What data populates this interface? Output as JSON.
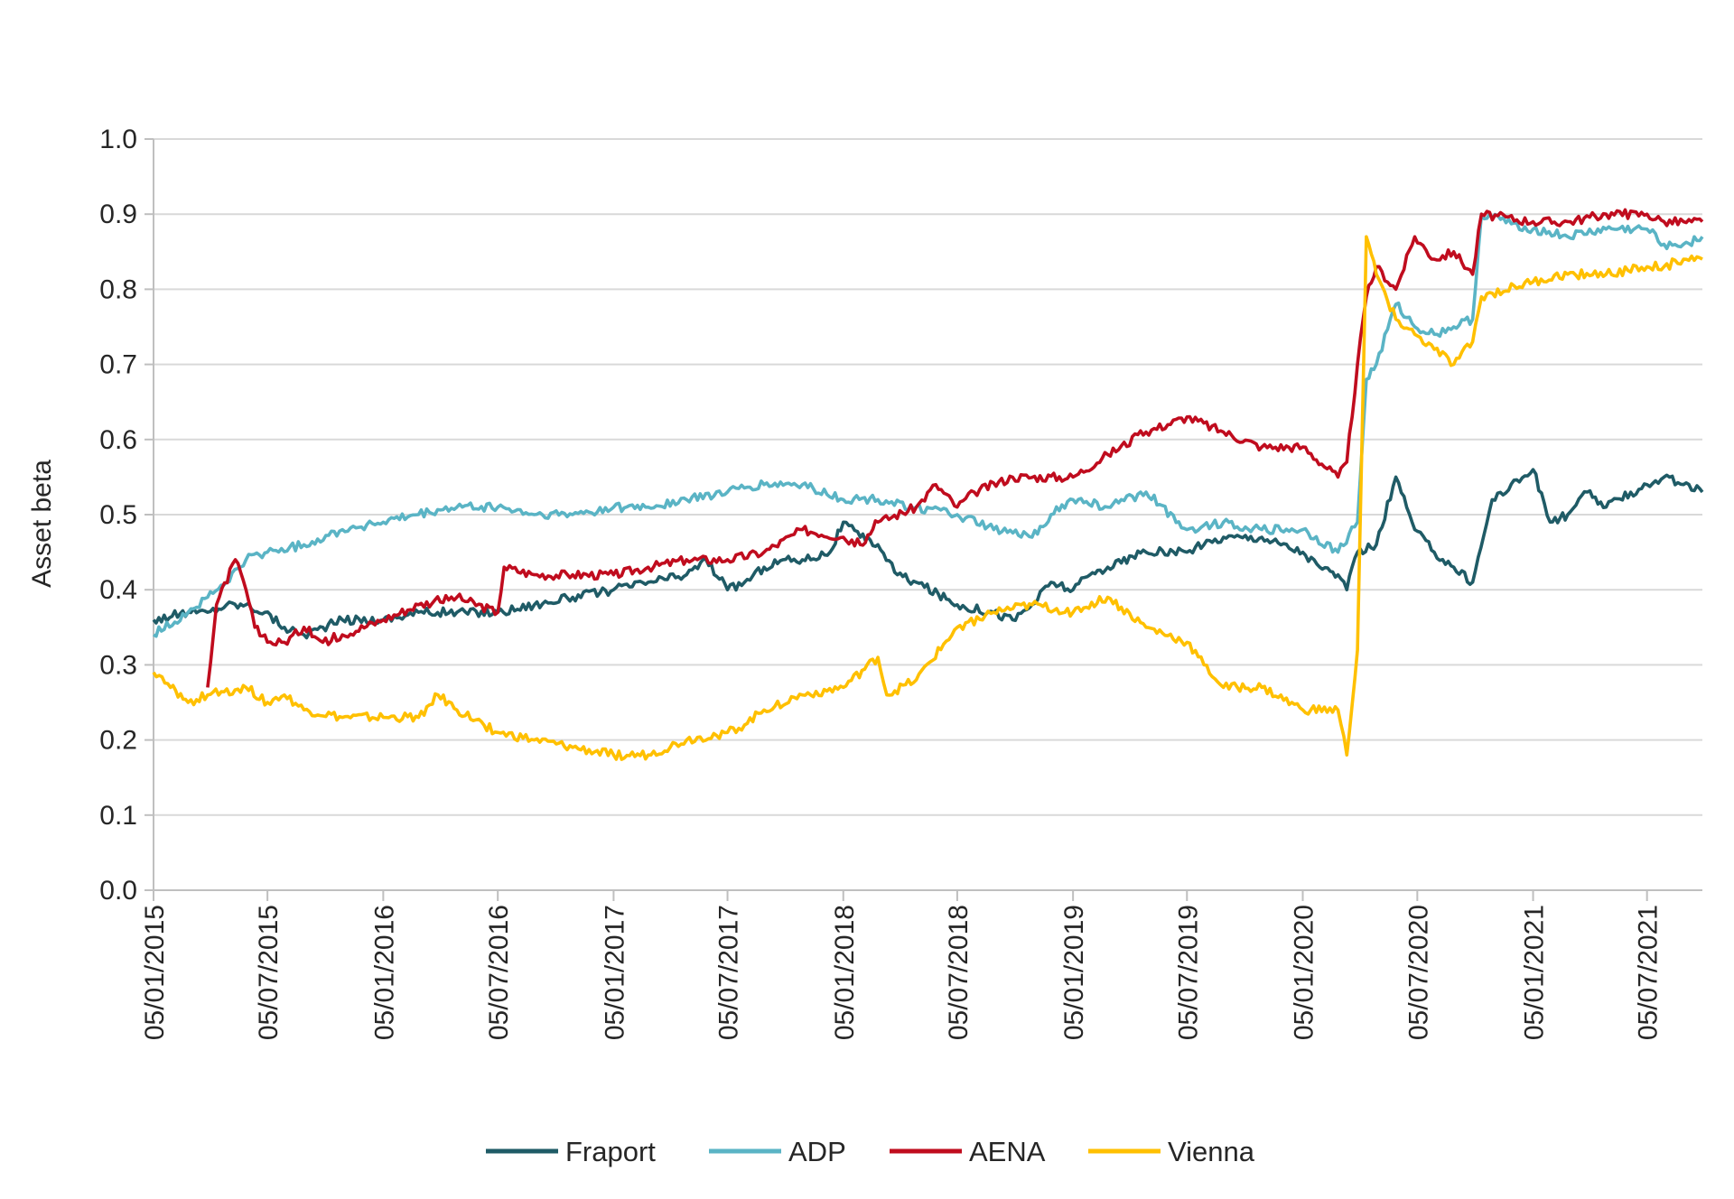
{
  "chart_data": {
    "type": "line",
    "title": "",
    "xlabel": "",
    "ylabel": "Asset beta",
    "ylim": [
      0.0,
      1.0
    ],
    "y_ticks": [
      "0.0",
      "0.1",
      "0.2",
      "0.3",
      "0.4",
      "0.5",
      "0.6",
      "0.7",
      "0.8",
      "0.9",
      "1.0"
    ],
    "x_ticks": [
      "05/01/2015",
      "05/07/2015",
      "05/01/2016",
      "05/07/2016",
      "05/01/2017",
      "05/07/2017",
      "05/01/2018",
      "05/07/2018",
      "05/01/2019",
      "05/07/2019",
      "05/01/2020",
      "05/07/2020",
      "05/01/2021",
      "05/07/2021"
    ],
    "xlim": [
      "05/01/2015",
      "01/10/2021"
    ],
    "grid": "horizontal",
    "legend_position": "bottom",
    "series": [
      {
        "name": "Fraport",
        "color": "#1f5b66",
        "points": [
          [
            "05/01/2015",
            0.36
          ],
          [
            "01/03/2015",
            0.37
          ],
          [
            "01/04/2015",
            0.37
          ],
          [
            "01/05/2015",
            0.38
          ],
          [
            "01/06/2015",
            0.38
          ],
          [
            "01/07/2015",
            0.37
          ],
          [
            "01/08/2015",
            0.35
          ],
          [
            "01/09/2015",
            0.34
          ],
          [
            "01/10/2015",
            0.35
          ],
          [
            "01/11/2015",
            0.36
          ],
          [
            "05/01/2016",
            0.36
          ],
          [
            "01/03/2016",
            0.37
          ],
          [
            "01/05/2016",
            0.37
          ],
          [
            "05/07/2016",
            0.37
          ],
          [
            "01/09/2016",
            0.38
          ],
          [
            "01/11/2016",
            0.39
          ],
          [
            "05/01/2017",
            0.4
          ],
          [
            "01/03/2017",
            0.41
          ],
          [
            "01/05/2017",
            0.42
          ],
          [
            "01/06/2017",
            0.44
          ],
          [
            "05/07/2017",
            0.4
          ],
          [
            "01/08/2017",
            0.41
          ],
          [
            "01/09/2017",
            0.43
          ],
          [
            "01/10/2017",
            0.44
          ],
          [
            "01/11/2017",
            0.44
          ],
          [
            "15/12/2017",
            0.45
          ],
          [
            "05/01/2018",
            0.49
          ],
          [
            "01/02/2018",
            0.47
          ],
          [
            "01/03/2018",
            0.46
          ],
          [
            "01/04/2018",
            0.42
          ],
          [
            "01/05/2018",
            0.41
          ],
          [
            "05/07/2018",
            0.38
          ],
          [
            "01/09/2018",
            0.37
          ],
          [
            "01/10/2018",
            0.36
          ],
          [
            "01/11/2018",
            0.38
          ],
          [
            "01/12/2018",
            0.41
          ],
          [
            "05/01/2019",
            0.4
          ],
          [
            "01/02/2019",
            0.42
          ],
          [
            "01/03/2019",
            0.43
          ],
          [
            "01/05/2019",
            0.45
          ],
          [
            "05/07/2019",
            0.45
          ],
          [
            "01/08/2019",
            0.46
          ],
          [
            "01/09/2019",
            0.47
          ],
          [
            "01/11/2019",
            0.47
          ],
          [
            "05/01/2020",
            0.45
          ],
          [
            "01/02/2020",
            0.43
          ],
          [
            "01/03/2020",
            0.42
          ],
          [
            "15/03/2020",
            0.4
          ],
          [
            "01/04/2020",
            0.45
          ],
          [
            "01/05/2020",
            0.46
          ],
          [
            "01/06/2020",
            0.55
          ],
          [
            "01/07/2020",
            0.48
          ],
          [
            "01/08/2020",
            0.45
          ],
          [
            "01/09/2020",
            0.43
          ],
          [
            "01/10/2020",
            0.41
          ],
          [
            "01/11/2020",
            0.52
          ],
          [
            "05/01/2021",
            0.56
          ],
          [
            "01/02/2021",
            0.49
          ],
          [
            "01/03/2021",
            0.5
          ],
          [
            "01/04/2021",
            0.53
          ],
          [
            "01/05/2021",
            0.51
          ],
          [
            "05/07/2021",
            0.54
          ],
          [
            "01/08/2021",
            0.55
          ],
          [
            "01/09/2021",
            0.54
          ],
          [
            "01/10/2021",
            0.53
          ]
        ]
      },
      {
        "name": "ADP",
        "color": "#5ab4c5",
        "points": [
          [
            "05/01/2015",
            0.34
          ],
          [
            "01/03/2015",
            0.37
          ],
          [
            "01/04/2015",
            0.39
          ],
          [
            "01/05/2015",
            0.41
          ],
          [
            "01/06/2015",
            0.44
          ],
          [
            "05/07/2015",
            0.45
          ],
          [
            "01/09/2015",
            0.46
          ],
          [
            "01/11/2015",
            0.48
          ],
          [
            "05/01/2016",
            0.49
          ],
          [
            "01/03/2016",
            0.5
          ],
          [
            "01/05/2016",
            0.51
          ],
          [
            "05/07/2016",
            0.51
          ],
          [
            "01/09/2016",
            0.5
          ],
          [
            "01/11/2016",
            0.5
          ],
          [
            "05/01/2017",
            0.51
          ],
          [
            "01/03/2017",
            0.51
          ],
          [
            "01/05/2017",
            0.52
          ],
          [
            "05/07/2017",
            0.53
          ],
          [
            "01/09/2017",
            0.54
          ],
          [
            "01/11/2017",
            0.54
          ],
          [
            "05/01/2018",
            0.52
          ],
          [
            "01/03/2018",
            0.52
          ],
          [
            "01/05/2018",
            0.51
          ],
          [
            "05/07/2018",
            0.5
          ],
          [
            "01/09/2018",
            0.48
          ],
          [
            "01/11/2018",
            0.47
          ],
          [
            "01/12/2018",
            0.5
          ],
          [
            "05/01/2019",
            0.52
          ],
          [
            "01/03/2019",
            0.51
          ],
          [
            "01/05/2019",
            0.53
          ],
          [
            "05/07/2019",
            0.48
          ],
          [
            "01/09/2019",
            0.49
          ],
          [
            "01/11/2019",
            0.48
          ],
          [
            "05/01/2020",
            0.48
          ],
          [
            "01/03/2020",
            0.45
          ],
          [
            "01/04/2020",
            0.49
          ],
          [
            "15/04/2020",
            0.68
          ],
          [
            "01/05/2020",
            0.7
          ],
          [
            "01/06/2020",
            0.78
          ],
          [
            "01/07/2020",
            0.75
          ],
          [
            "01/08/2020",
            0.74
          ],
          [
            "01/09/2020",
            0.75
          ],
          [
            "01/10/2020",
            0.76
          ],
          [
            "15/10/2020",
            0.9
          ],
          [
            "05/01/2021",
            0.88
          ],
          [
            "01/03/2021",
            0.87
          ],
          [
            "01/05/2021",
            0.88
          ],
          [
            "05/07/2021",
            0.88
          ],
          [
            "01/08/2021",
            0.86
          ],
          [
            "01/09/2021",
            0.86
          ],
          [
            "01/10/2021",
            0.87
          ]
        ]
      },
      {
        "name": "AENA",
        "color": "#c00c1e",
        "points": [
          [
            "01/04/2015",
            0.27
          ],
          [
            "15/04/2015",
            0.38
          ],
          [
            "15/05/2015",
            0.44
          ],
          [
            "01/06/2015",
            0.4
          ],
          [
            "15/06/2015",
            0.35
          ],
          [
            "05/07/2015",
            0.33
          ],
          [
            "01/08/2015",
            0.33
          ],
          [
            "01/09/2015",
            0.35
          ],
          [
            "01/10/2015",
            0.33
          ],
          [
            "01/11/2015",
            0.34
          ],
          [
            "05/01/2016",
            0.36
          ],
          [
            "01/03/2016",
            0.38
          ],
          [
            "01/05/2016",
            0.39
          ],
          [
            "05/07/2016",
            0.37
          ],
          [
            "15/07/2016",
            0.43
          ],
          [
            "01/09/2016",
            0.42
          ],
          [
            "01/11/2016",
            0.42
          ],
          [
            "05/01/2017",
            0.42
          ],
          [
            "01/03/2017",
            0.43
          ],
          [
            "01/05/2017",
            0.44
          ],
          [
            "05/07/2017",
            0.44
          ],
          [
            "01/09/2017",
            0.45
          ],
          [
            "01/11/2017",
            0.48
          ],
          [
            "05/01/2018",
            0.47
          ],
          [
            "01/02/2018",
            0.46
          ],
          [
            "01/03/2018",
            0.49
          ],
          [
            "01/05/2018",
            0.51
          ],
          [
            "01/06/2018",
            0.54
          ],
          [
            "05/07/2018",
            0.51
          ],
          [
            "01/08/2018",
            0.53
          ],
          [
            "01/10/2018",
            0.55
          ],
          [
            "05/01/2019",
            0.55
          ],
          [
            "01/03/2019",
            0.58
          ],
          [
            "01/05/2019",
            0.61
          ],
          [
            "05/07/2019",
            0.63
          ],
          [
            "01/09/2019",
            0.61
          ],
          [
            "01/11/2019",
            0.59
          ],
          [
            "05/01/2020",
            0.59
          ],
          [
            "01/03/2020",
            0.55
          ],
          [
            "15/03/2020",
            0.57
          ],
          [
            "01/04/2020",
            0.7
          ],
          [
            "15/04/2020",
            0.79
          ],
          [
            "01/05/2020",
            0.83
          ],
          [
            "01/06/2020",
            0.8
          ],
          [
            "01/07/2020",
            0.87
          ],
          [
            "01/08/2020",
            0.84
          ],
          [
            "01/09/2020",
            0.85
          ],
          [
            "01/10/2020",
            0.82
          ],
          [
            "15/10/2020",
            0.9
          ],
          [
            "05/01/2021",
            0.89
          ],
          [
            "01/03/2021",
            0.89
          ],
          [
            "01/05/2021",
            0.9
          ],
          [
            "05/07/2021",
            0.9
          ],
          [
            "01/08/2021",
            0.89
          ],
          [
            "01/09/2021",
            0.89
          ],
          [
            "01/10/2021",
            0.89
          ]
        ]
      },
      {
        "name": "Vienna",
        "color": "#ffc000",
        "points": [
          [
            "05/01/2015",
            0.29
          ],
          [
            "01/02/2015",
            0.27
          ],
          [
            "01/03/2015",
            0.25
          ],
          [
            "01/04/2015",
            0.26
          ],
          [
            "01/06/2015",
            0.27
          ],
          [
            "05/07/2015",
            0.25
          ],
          [
            "01/08/2015",
            0.26
          ],
          [
            "01/09/2015",
            0.24
          ],
          [
            "01/11/2015",
            0.23
          ],
          [
            "05/01/2016",
            0.23
          ],
          [
            "01/03/2016",
            0.23
          ],
          [
            "01/04/2016",
            0.26
          ],
          [
            "01/05/2016",
            0.24
          ],
          [
            "05/07/2016",
            0.21
          ],
          [
            "01/09/2016",
            0.2
          ],
          [
            "01/11/2016",
            0.19
          ],
          [
            "05/01/2017",
            0.18
          ],
          [
            "01/03/2017",
            0.18
          ],
          [
            "01/05/2017",
            0.2
          ],
          [
            "05/07/2017",
            0.21
          ],
          [
            "01/08/2017",
            0.22
          ],
          [
            "01/09/2017",
            0.24
          ],
          [
            "01/11/2017",
            0.26
          ],
          [
            "05/01/2018",
            0.27
          ],
          [
            "01/03/2018",
            0.31
          ],
          [
            "15/03/2018",
            0.26
          ],
          [
            "01/05/2018",
            0.28
          ],
          [
            "05/07/2018",
            0.35
          ],
          [
            "01/09/2018",
            0.37
          ],
          [
            "01/11/2018",
            0.38
          ],
          [
            "05/01/2019",
            0.37
          ],
          [
            "01/03/2019",
            0.39
          ],
          [
            "01/05/2019",
            0.35
          ],
          [
            "05/07/2019",
            0.33
          ],
          [
            "01/08/2019",
            0.3
          ],
          [
            "01/09/2019",
            0.27
          ],
          [
            "01/11/2019",
            0.27
          ],
          [
            "05/01/2020",
            0.24
          ],
          [
            "01/03/2020",
            0.24
          ],
          [
            "15/03/2020",
            0.18
          ],
          [
            "01/04/2020",
            0.32
          ],
          [
            "15/04/2020",
            0.87
          ],
          [
            "01/05/2020",
            0.82
          ],
          [
            "01/06/2020",
            0.76
          ],
          [
            "01/07/2020",
            0.74
          ],
          [
            "01/08/2020",
            0.72
          ],
          [
            "01/09/2020",
            0.7
          ],
          [
            "01/10/2020",
            0.73
          ],
          [
            "15/10/2020",
            0.79
          ],
          [
            "05/01/2021",
            0.81
          ],
          [
            "01/03/2021",
            0.82
          ],
          [
            "01/05/2021",
            0.82
          ],
          [
            "05/07/2021",
            0.83
          ],
          [
            "01/08/2021",
            0.83
          ],
          [
            "01/09/2021",
            0.84
          ],
          [
            "01/10/2021",
            0.84
          ]
        ]
      }
    ]
  }
}
